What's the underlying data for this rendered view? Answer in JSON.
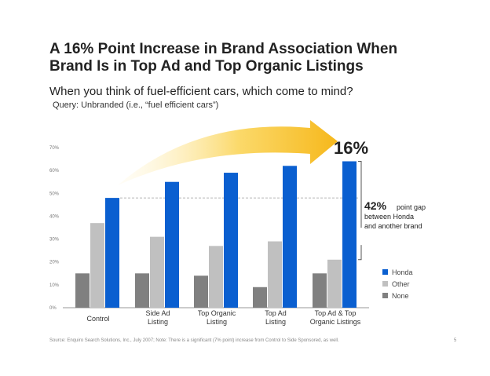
{
  "header": {
    "title_line1": "A 16% Point Increase in Brand Association When",
    "title_line2": "Brand Is in Top Ad and Top Organic Listings",
    "subtitle": "When you think of fuel-efficient cars, which come to mind?",
    "query": "Query: Unbranded (i.e., “fuel efficient cars”)"
  },
  "chart_data": {
    "type": "bar",
    "categories": [
      [
        "Control"
      ],
      [
        "Side Ad",
        "Listing"
      ],
      [
        "Top Organic",
        "Listing"
      ],
      [
        "Top Ad",
        "Listing"
      ],
      [
        "Top Ad & Top",
        "Organic Listings"
      ]
    ],
    "series": [
      {
        "name": "None",
        "color": "#808080",
        "values": [
          15,
          15,
          14,
          9,
          15
        ]
      },
      {
        "name": "Other",
        "color": "#c0c0c0",
        "values": [
          37,
          31,
          27,
          29,
          21
        ]
      },
      {
        "name": "Honda",
        "color": "#0a5fd0",
        "values": [
          48,
          55,
          59,
          62,
          64
        ]
      }
    ],
    "y_ticks": [
      "0%",
      "10%",
      "20%",
      "30%",
      "40%",
      "50%",
      "60%",
      "70%"
    ],
    "ylim": [
      0,
      70
    ],
    "legend_order": [
      "Honda",
      "Other",
      "None"
    ],
    "legend_position": "bottom-right",
    "reference_line": {
      "value": 48,
      "style": "dashed"
    },
    "annotations": {
      "increase_label": "16%",
      "gap_value": "42%",
      "gap_suffix": "point gap",
      "gap_line2": "between Honda",
      "gap_line3": "and another brand"
    }
  },
  "footer": {
    "source": "Source: Enquiro Search Solutions, Inc., July 2007; Note: There is a significant (7% point) increase from Control to Side Sponsored, as well.",
    "page_number": "5"
  }
}
